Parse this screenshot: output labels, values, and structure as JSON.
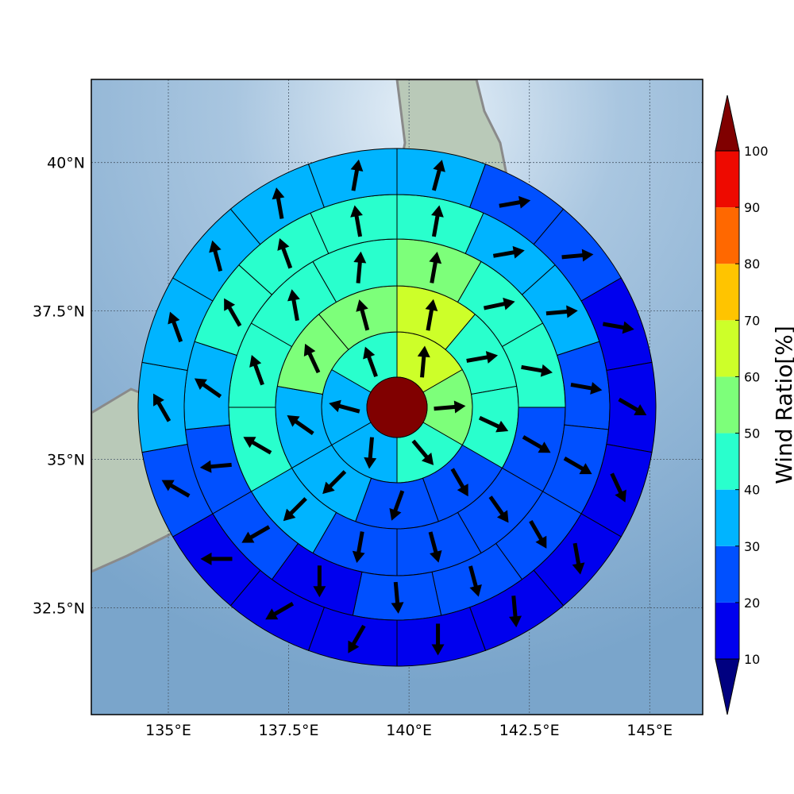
{
  "chart_data": {
    "type": "heatmap",
    "title": "",
    "description_grid": "polar sectors centered near 36N 139.6E; value = wind ratio percent, arrow = direction",
    "x_ticks": [
      "135°E",
      "137.5°E",
      "140°E",
      "142.5°E",
      "145°E"
    ],
    "x_tick_values": [
      135,
      137.5,
      140,
      142.5,
      145
    ],
    "y_ticks": [
      "40°N",
      "37.5°N",
      "35°N",
      "32.5°N"
    ],
    "y_tick_values": [
      40,
      37.5,
      35,
      32.5
    ],
    "xlim": [
      133.4,
      146.1
    ],
    "ylim": [
      30.7,
      41.4
    ],
    "center": [
      139.6,
      35.8
    ],
    "grid": true,
    "colorbar": {
      "label": "Wind Ratio[%]",
      "ticks": [
        10,
        20,
        30,
        40,
        50,
        60,
        70,
        80,
        90,
        100
      ],
      "colors": [
        "#000080",
        "#0000ee",
        "#0050ff",
        "#00b4ff",
        "#29ffcd",
        "#7dff7a",
        "#cdff29",
        "#ffc400",
        "#ff6800",
        "#ee0a00",
        "#800000"
      ],
      "extend": "both"
    },
    "rings": [
      {
        "ring": 1,
        "sectors": [
          {
            "value": 65,
            "direction_deg": 5
          },
          {
            "value": 55,
            "direction_deg": 85
          },
          {
            "value": 45,
            "direction_deg": 140
          },
          {
            "value": 30,
            "direction_deg": 185
          },
          {
            "value": 35,
            "direction_deg": 285
          },
          {
            "value": 45,
            "direction_deg": 340
          }
        ]
      },
      {
        "ring": 2,
        "sectors": [
          {
            "value": 65,
            "direction_deg": 10
          },
          {
            "value": 45,
            "direction_deg": 80
          },
          {
            "value": 40,
            "direction_deg": 115
          },
          {
            "value": 25,
            "direction_deg": 150
          },
          {
            "value": 25,
            "direction_deg": 200
          },
          {
            "value": 35,
            "direction_deg": 225
          },
          {
            "value": 35,
            "direction_deg": 305
          },
          {
            "value": 55,
            "direction_deg": 335
          },
          {
            "value": 55,
            "direction_deg": 345
          }
        ]
      },
      {
        "ring": 3,
        "sectors": [
          {
            "value": 55,
            "direction_deg": 10
          },
          {
            "value": 45,
            "direction_deg": 78
          },
          {
            "value": 45,
            "direction_deg": 100
          },
          {
            "value": 25,
            "direction_deg": 120
          },
          {
            "value": 25,
            "direction_deg": 145
          },
          {
            "value": 25,
            "direction_deg": 165
          },
          {
            "value": 25,
            "direction_deg": 190
          },
          {
            "value": 35,
            "direction_deg": 225
          },
          {
            "value": 45,
            "direction_deg": 300
          },
          {
            "value": 45,
            "direction_deg": 340
          },
          {
            "value": 45,
            "direction_deg": 350
          },
          {
            "value": 45,
            "direction_deg": 5
          }
        ]
      },
      {
        "ring": 4,
        "sectors": [
          {
            "value": 45,
            "direction_deg": 10
          },
          {
            "value": 35,
            "direction_deg": 80
          },
          {
            "value": 35,
            "direction_deg": 85
          },
          {
            "value": 25,
            "direction_deg": 100
          },
          {
            "value": 25,
            "direction_deg": 120
          },
          {
            "value": 25,
            "direction_deg": 150
          },
          {
            "value": 25,
            "direction_deg": 165
          },
          {
            "value": 25,
            "direction_deg": 175
          },
          {
            "value": 15,
            "direction_deg": 180
          },
          {
            "value": 25,
            "direction_deg": 240
          },
          {
            "value": 25,
            "direction_deg": 265
          },
          {
            "value": 35,
            "direction_deg": 305
          },
          {
            "value": 45,
            "direction_deg": 330
          },
          {
            "value": 45,
            "direction_deg": 340
          },
          {
            "value": 45,
            "direction_deg": 350
          }
        ]
      },
      {
        "ring": 5,
        "sectors": [
          {
            "value": 35,
            "direction_deg": 15
          },
          {
            "value": 25,
            "direction_deg": 80
          },
          {
            "value": 25,
            "direction_deg": 85
          },
          {
            "value": 15,
            "direction_deg": 100
          },
          {
            "value": 15,
            "direction_deg": 120
          },
          {
            "value": 15,
            "direction_deg": 155
          },
          {
            "value": 15,
            "direction_deg": 170
          },
          {
            "value": 15,
            "direction_deg": 175
          },
          {
            "value": 15,
            "direction_deg": 180
          },
          {
            "value": 15,
            "direction_deg": 210
          },
          {
            "value": 15,
            "direction_deg": 240
          },
          {
            "value": 15,
            "direction_deg": 270
          },
          {
            "value": 25,
            "direction_deg": 300
          },
          {
            "value": 35,
            "direction_deg": 330
          },
          {
            "value": 35,
            "direction_deg": 340
          },
          {
            "value": 35,
            "direction_deg": 345
          },
          {
            "value": 35,
            "direction_deg": 350
          },
          {
            "value": 35,
            "direction_deg": 10
          }
        ]
      }
    ],
    "center_value": 100
  }
}
